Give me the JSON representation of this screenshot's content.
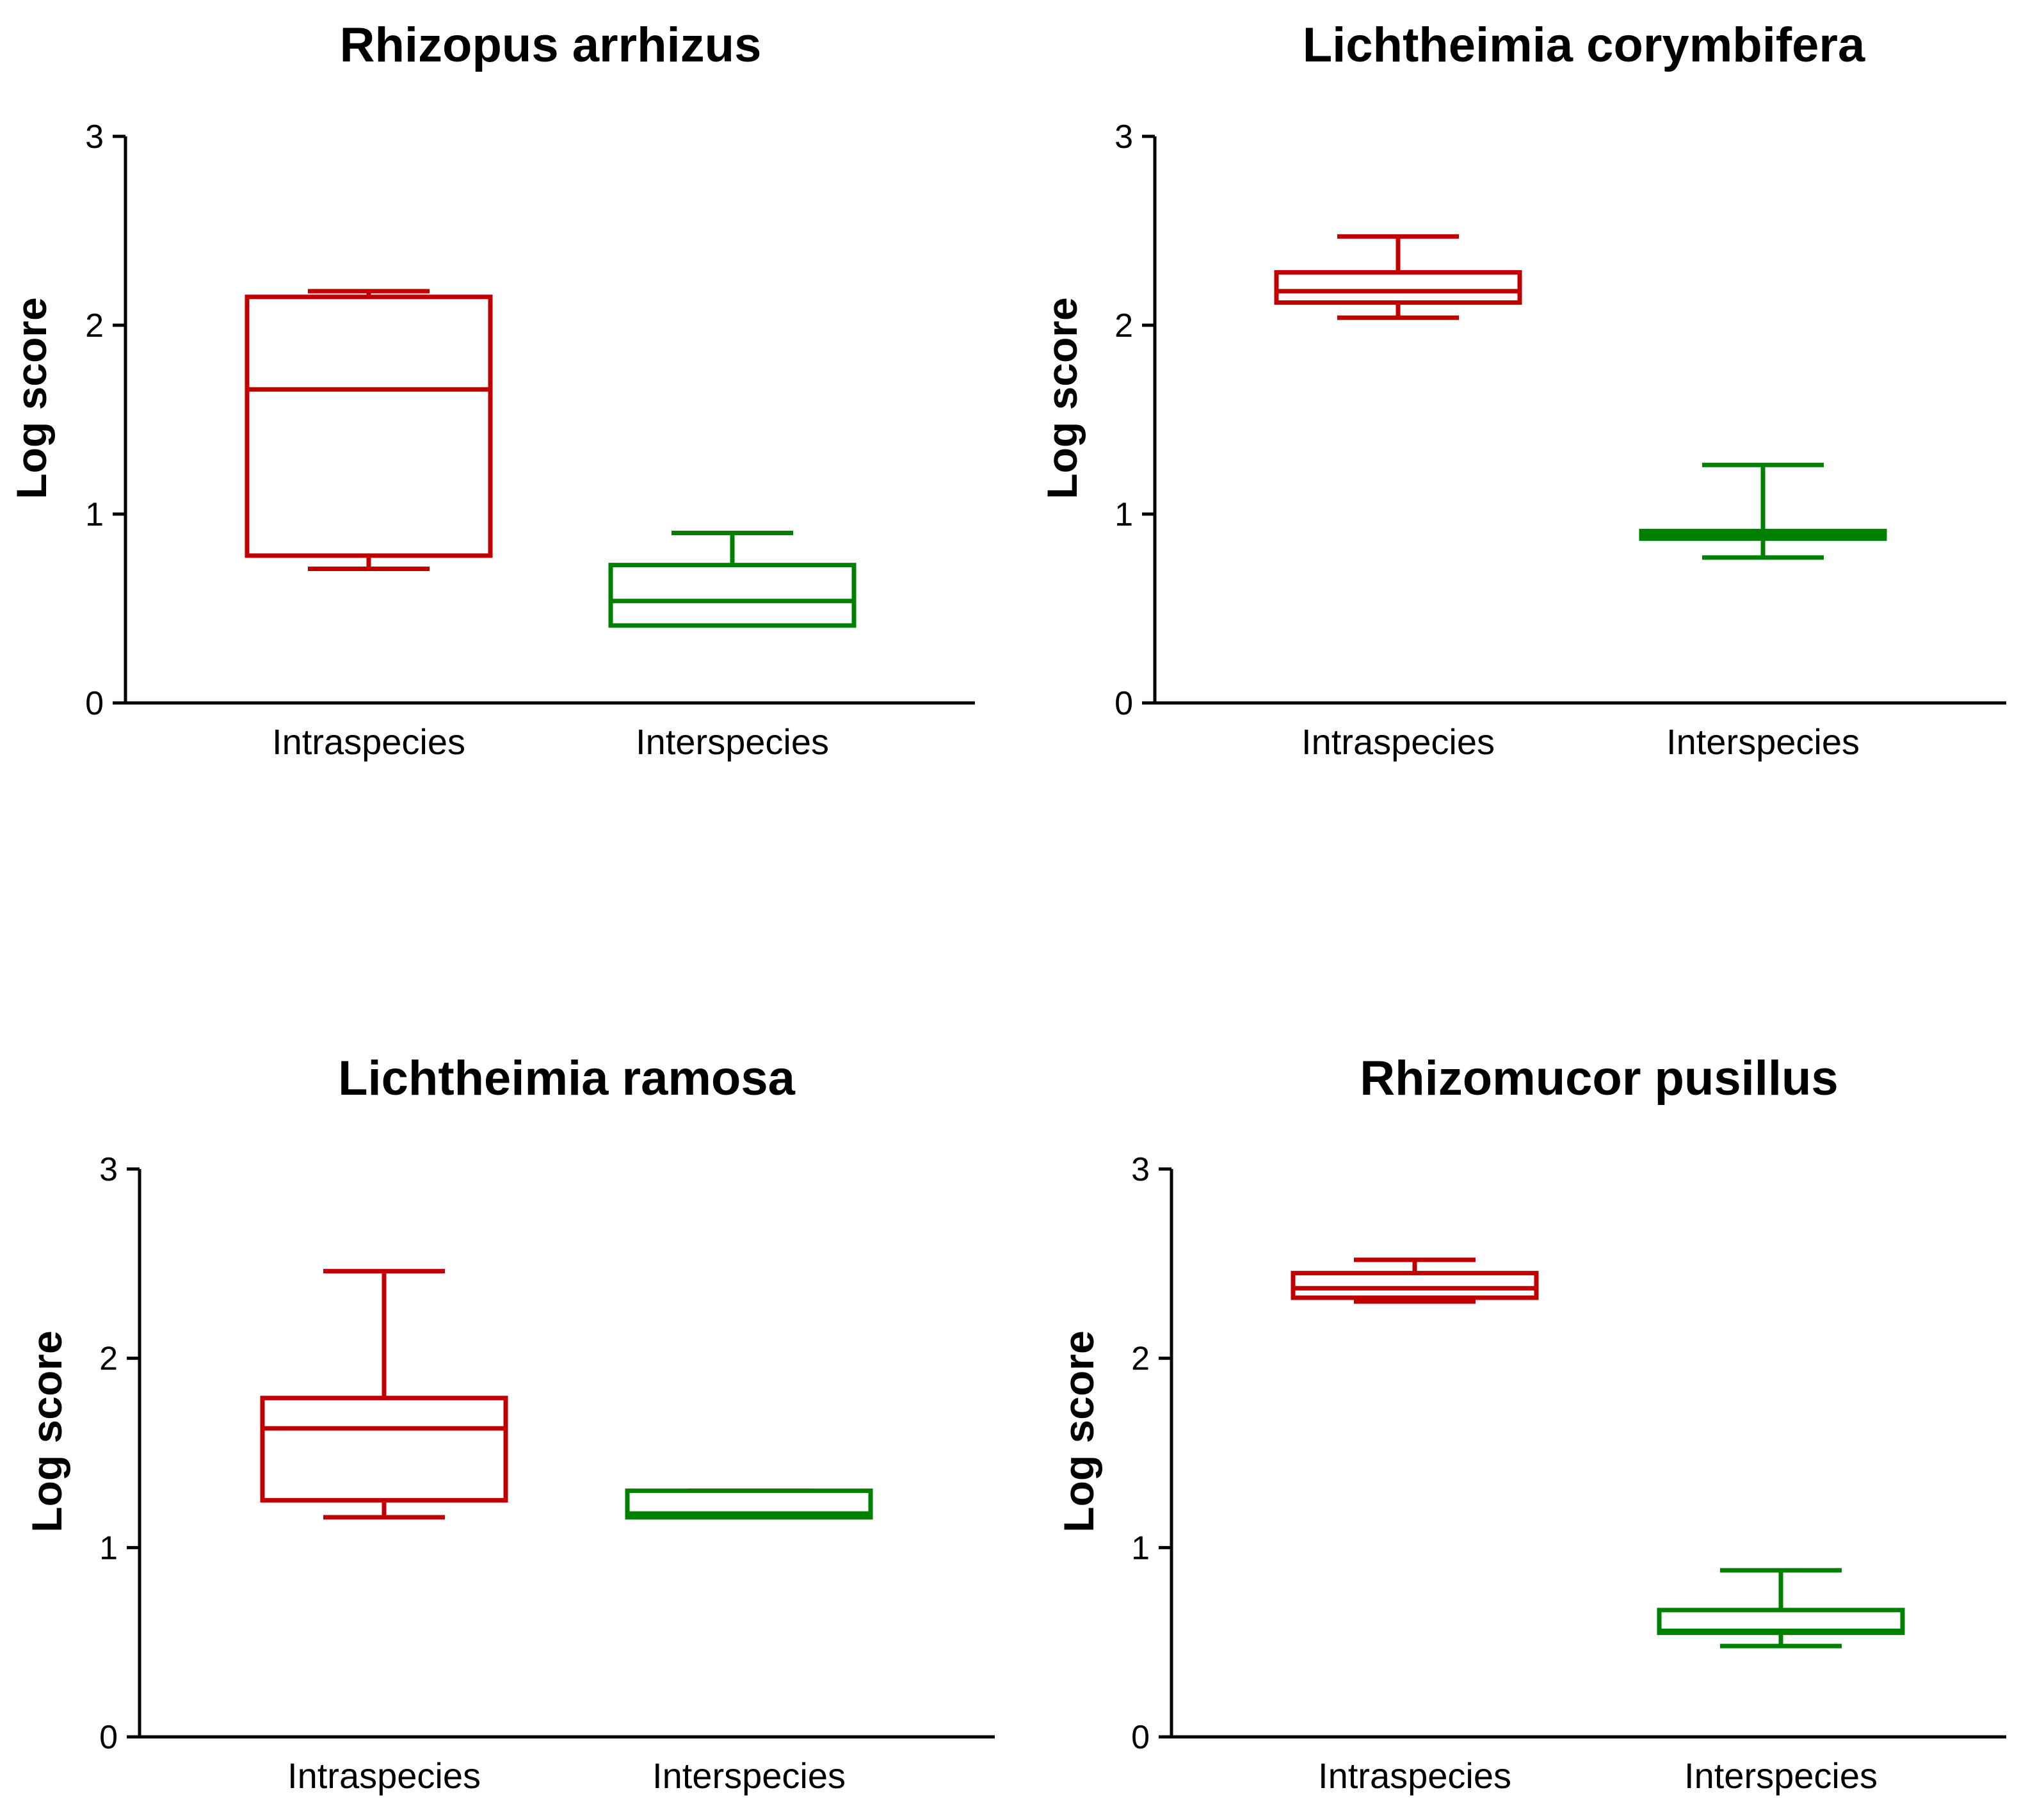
{
  "chart_data": [
    {
      "type": "box",
      "title": "Rhizopus arrhizus",
      "ylabel": "Log score",
      "xlabel": "",
      "ylim": [
        0,
        3
      ],
      "yticks": [
        "0",
        "1",
        "2",
        "3"
      ],
      "categories": [
        "Intraspecies",
        "Interspecies"
      ],
      "colors": [
        "#c00000",
        "#008000"
      ],
      "boxes": [
        {
          "whisker_low": 0.71,
          "q1": 0.78,
          "median": 1.66,
          "q3": 2.15,
          "whisker_high": 2.18
        },
        {
          "whisker_low": 0.41,
          "q1": 0.41,
          "median": 0.54,
          "q3": 0.73,
          "whisker_high": 0.9
        }
      ]
    },
    {
      "type": "box",
      "title": "Lichtheimia corymbifera",
      "ylabel": "Log score",
      "xlabel": "",
      "ylim": [
        0,
        3
      ],
      "yticks": [
        "0",
        "1",
        "2",
        "3"
      ],
      "categories": [
        "Intraspecies",
        "Interspecies"
      ],
      "colors": [
        "#c00000",
        "#008000"
      ],
      "boxes": [
        {
          "whisker_low": 2.04,
          "q1": 2.12,
          "median": 2.18,
          "q3": 2.28,
          "whisker_high": 2.47
        },
        {
          "whisker_low": 0.77,
          "q1": 0.87,
          "median": 0.89,
          "q3": 0.91,
          "whisker_high": 1.26
        }
      ]
    },
    {
      "type": "box",
      "title": "Lichtheimia ramosa",
      "ylabel": "Log score",
      "xlabel": "",
      "ylim": [
        0,
        3
      ],
      "yticks": [
        "0",
        "1",
        "2",
        "3"
      ],
      "categories": [
        "Intraspecies",
        "Interspecies"
      ],
      "colors": [
        "#c00000",
        "#008000"
      ],
      "boxes": [
        {
          "whisker_low": 1.16,
          "q1": 1.25,
          "median": 1.63,
          "q3": 1.79,
          "whisker_high": 2.46
        },
        {
          "whisker_low": 1.16,
          "q1": 1.16,
          "median": 1.18,
          "q3": 1.3,
          "whisker_high": 1.3
        }
      ]
    },
    {
      "type": "box",
      "title": "Rhizomucor pusillus",
      "ylabel": "Log score",
      "xlabel": "",
      "ylim": [
        0,
        3
      ],
      "yticks": [
        "0",
        "1",
        "2",
        "3"
      ],
      "categories": [
        "Intraspecies",
        "Interspecies"
      ],
      "colors": [
        "#c00000",
        "#008000"
      ],
      "boxes": [
        {
          "whisker_low": 2.3,
          "q1": 2.32,
          "median": 2.37,
          "q3": 2.45,
          "whisker_high": 2.52
        },
        {
          "whisker_low": 0.48,
          "q1": 0.55,
          "median": 0.56,
          "q3": 0.67,
          "whisker_high": 0.88
        }
      ]
    }
  ]
}
